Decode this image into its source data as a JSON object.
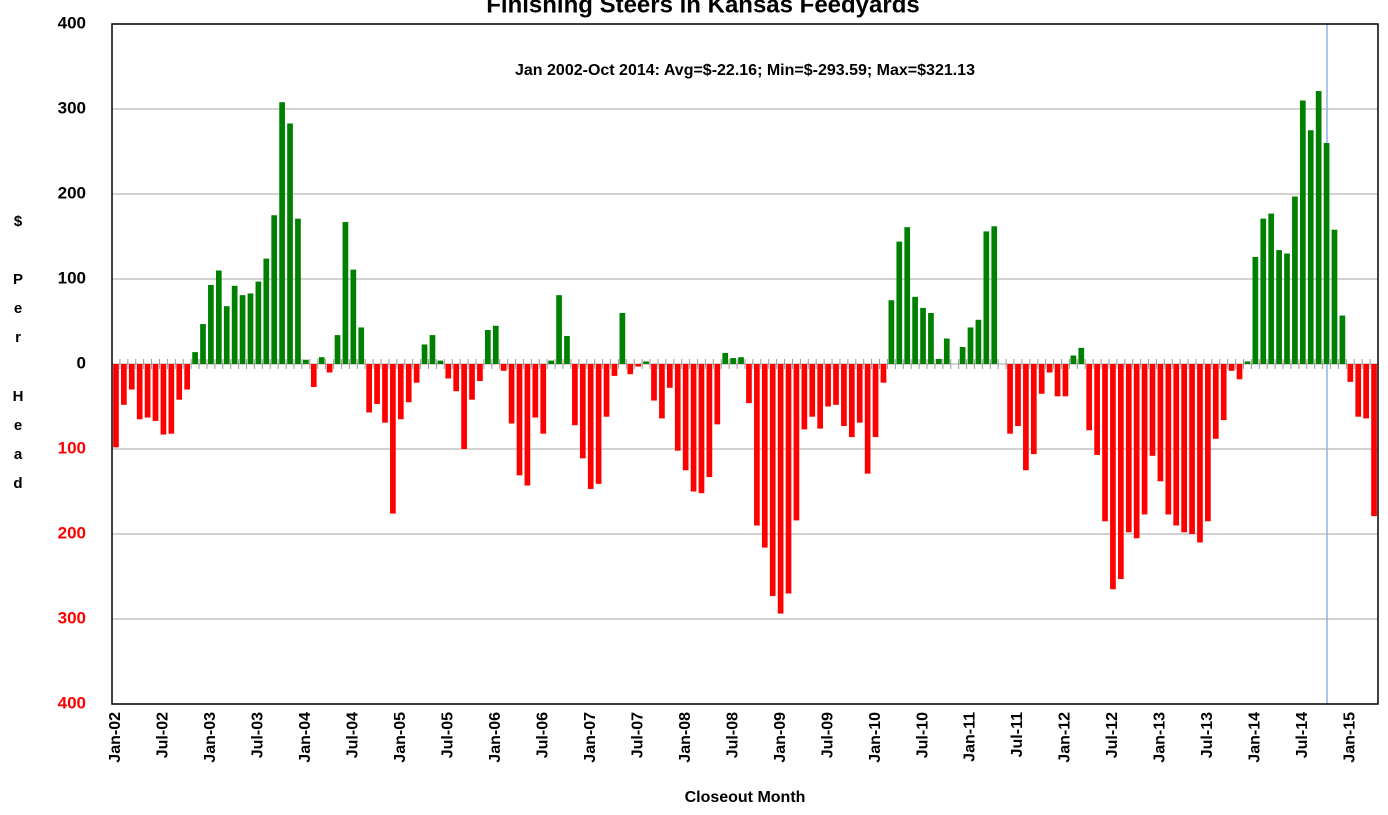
{
  "chart_data": {
    "type": "bar",
    "title": "Finishing Steers in Kansas Feedyards",
    "annotation": "Jan 2002-Oct 2014:  Avg=$-22.16; Min=$-293.59; Max=$321.13",
    "ylabel": [
      "$",
      "P",
      "e",
      "r",
      "H",
      "e",
      "a",
      "d"
    ],
    "xlabel": "Closeout Month",
    "categories": [
      "Jan-02",
      null,
      null,
      null,
      null,
      null,
      "Jul-02",
      null,
      null,
      null,
      null,
      null,
      "Jan-03",
      null,
      null,
      null,
      null,
      null,
      "Jul-03",
      null,
      null,
      null,
      null,
      null,
      "Jan-04",
      null,
      null,
      null,
      null,
      null,
      "Jul-04",
      null,
      null,
      null,
      null,
      null,
      "Jan-05",
      null,
      null,
      null,
      null,
      null,
      "Jul-05",
      null,
      null,
      null,
      null,
      null,
      "Jan-06",
      null,
      null,
      null,
      null,
      null,
      "Jul-06",
      null,
      null,
      null,
      null,
      null,
      "Jan-07",
      null,
      null,
      null,
      null,
      null,
      "Jul-07",
      null,
      null,
      null,
      null,
      null,
      "Jan-08",
      null,
      null,
      null,
      null,
      null,
      "Jul-08",
      null,
      null,
      null,
      null,
      null,
      "Jan-09",
      null,
      null,
      null,
      null,
      null,
      "Jul-09",
      null,
      null,
      null,
      null,
      null,
      "Jan-10",
      null,
      null,
      null,
      null,
      null,
      "Jul-10",
      null,
      null,
      null,
      null,
      null,
      "Jan-11",
      null,
      null,
      null,
      null,
      null,
      "Jul-11",
      null,
      null,
      null,
      null,
      null,
      "Jan-12",
      null,
      null,
      null,
      null,
      null,
      "Jul-12",
      null,
      null,
      null,
      null,
      null,
      "Jan-13",
      null,
      null,
      null,
      null,
      null,
      "Jul-13",
      null,
      null,
      null,
      null,
      null,
      "Jan-14",
      null,
      null,
      null,
      null,
      null,
      "Jul-14",
      null,
      null,
      null,
      null,
      null,
      "Jan-15",
      null,
      null,
      null
    ],
    "values": [
      -98,
      -48,
      -30,
      -65,
      -63,
      -67,
      -83,
      -82,
      -42,
      -30,
      14,
      47,
      93,
      110,
      68,
      92,
      81,
      83,
      97,
      124,
      175,
      308,
      283,
      171,
      5,
      -27,
      8,
      -10,
      34,
      167,
      111,
      43,
      -57,
      -47,
      -69,
      -176,
      -65,
      -45,
      -22,
      23,
      34,
      4,
      -17,
      -32,
      -100,
      -42,
      -20,
      40,
      45,
      -8,
      -70,
      -131,
      -143,
      -63,
      -82,
      4,
      81,
      33,
      -72,
      -111,
      -147,
      -141,
      -62,
      -14,
      60,
      -12,
      -3,
      3,
      -43,
      -64,
      -28,
      -102,
      -125,
      -150,
      -152,
      -133,
      -71,
      13,
      7,
      8,
      -46,
      -190,
      -216,
      -273,
      -293.59,
      -270,
      -184,
      -77,
      -62,
      -76,
      -50,
      -48,
      -73,
      -86,
      -69,
      -129,
      -86,
      -22,
      75,
      144,
      161,
      79,
      66,
      60,
      6,
      30,
      0,
      20,
      43,
      52,
      156,
      162,
      0,
      -82,
      -73,
      -125,
      -106,
      -35,
      -10,
      -38,
      -38,
      10,
      19,
      -78,
      -107,
      -185,
      -265,
      -253,
      -198,
      -205,
      -177,
      -108,
      -138,
      -177,
      -190,
      -198,
      -200,
      -210,
      -185,
      -88,
      -66,
      -8,
      -18,
      3,
      126,
      171,
      177,
      134,
      130,
      197,
      310,
      275,
      321.13,
      260,
      158,
      57,
      -21,
      -62,
      -64,
      -179
    ],
    "colors": {
      "positive": "#008000",
      "negative": "#ff0000"
    },
    "ylim": [
      -400,
      400
    ],
    "yticks": [
      {
        "value": -400,
        "label": "400"
      },
      {
        "value": -300,
        "label": "300"
      },
      {
        "value": -200,
        "label": "200"
      },
      {
        "value": -100,
        "label": "100"
      },
      0,
      100,
      200,
      300,
      400
    ],
    "grid": true
  }
}
